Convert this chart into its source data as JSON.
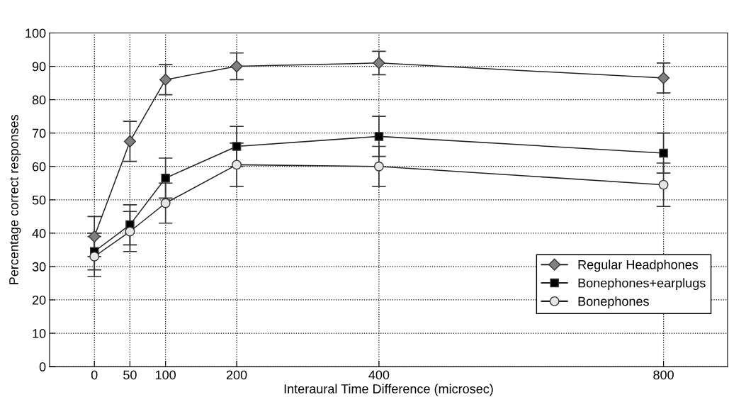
{
  "chart_data": {
    "type": "line",
    "xlabel": "Interaural Time Difference (microsec)",
    "ylabel": "Percentage correct responses",
    "x": [
      0,
      50,
      100,
      200,
      400,
      800
    ],
    "xlim": [
      -63,
      890
    ],
    "xticks": [
      0,
      50,
      100,
      200,
      400,
      800
    ],
    "ylim": [
      0,
      100
    ],
    "yticks": [
      0,
      10,
      20,
      30,
      40,
      50,
      60,
      70,
      80,
      90,
      100
    ],
    "grid": true,
    "legend": "bottom right",
    "series": [
      {
        "name": "Regular Headphones",
        "color": "#808080",
        "marker": "diamond",
        "values": [
          39,
          67.5,
          86,
          90,
          91,
          86.5
        ],
        "errors": [
          6,
          6,
          4.5,
          4,
          3.5,
          4.5
        ]
      },
      {
        "name": "Bonephones+earplugs",
        "color": "#000000",
        "marker": "square",
        "values": [
          34.5,
          42.5,
          56.5,
          66,
          69,
          64
        ],
        "errors": [
          5.5,
          6,
          6,
          6,
          6,
          6
        ]
      },
      {
        "name": "Bonephones",
        "color": "#e6e6e6",
        "marker": "circle",
        "values": [
          33,
          40.5,
          49,
          60.5,
          60,
          54.5
        ],
        "errors": [
          6,
          6,
          6,
          6.5,
          6,
          6.5
        ]
      }
    ]
  }
}
